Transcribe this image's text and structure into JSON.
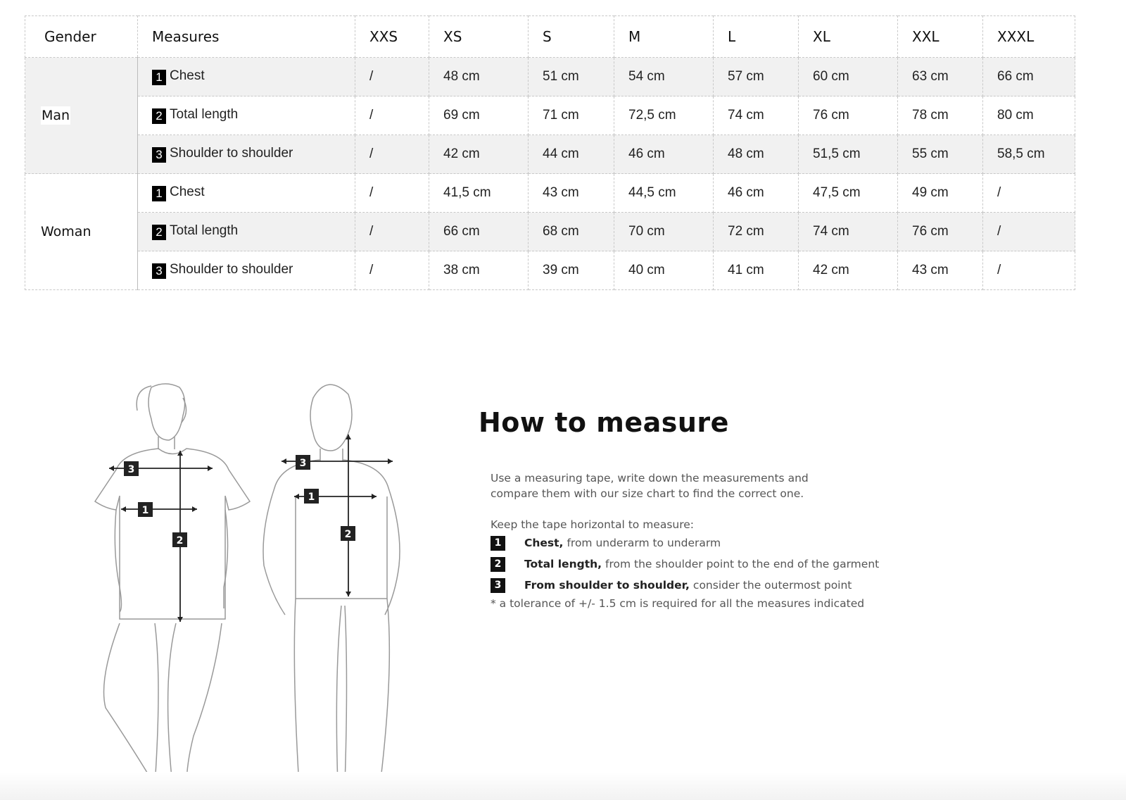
{
  "table": {
    "headers": [
      "Gender",
      "Measures",
      "XXS",
      "XS",
      "S",
      "M",
      "L",
      "XL",
      "XXL",
      "XXXL"
    ],
    "groups": [
      {
        "gender": "Man",
        "rows": [
          {
            "num": "1",
            "measure": "Chest",
            "values": [
              "/",
              "48 cm",
              "51 cm",
              "54 cm",
              "57 cm",
              "60 cm",
              "63 cm",
              "66 cm"
            ]
          },
          {
            "num": "2",
            "measure": "Total length",
            "values": [
              "/",
              "69 cm",
              "71 cm",
              "72,5 cm",
              "74 cm",
              "76 cm",
              "78 cm",
              "80 cm"
            ]
          },
          {
            "num": "3",
            "measure": "Shoulder to shoulder",
            "values": [
              "/",
              "42 cm",
              "44 cm",
              "46 cm",
              "48 cm",
              "51,5 cm",
              "55 cm",
              "58,5 cm"
            ]
          }
        ]
      },
      {
        "gender": "Woman",
        "rows": [
          {
            "num": "1",
            "measure": "Chest",
            "values": [
              "/",
              "41,5 cm",
              "43 cm",
              "44,5 cm",
              "46 cm",
              "47,5 cm",
              "49 cm",
              "/"
            ]
          },
          {
            "num": "2",
            "measure": "Total length",
            "values": [
              "/",
              "66 cm",
              "68 cm",
              "70 cm",
              "72 cm",
              "74 cm",
              "76 cm",
              "/"
            ]
          },
          {
            "num": "3",
            "measure": "Shoulder to shoulder",
            "values": [
              "/",
              "38 cm",
              "39 cm",
              "40 cm",
              "41 cm",
              "42 cm",
              "43 cm",
              "/"
            ]
          }
        ]
      }
    ]
  },
  "howto": {
    "title": "How to measure",
    "intro_line1": "Use a measuring tape, write down the measurements and",
    "intro_line2": "compare them with our size chart to find the correct one.",
    "keep": "Keep the tape horizontal to measure:",
    "steps": [
      {
        "num": "1",
        "bold": "Chest,",
        "text": "from underarm to underarm"
      },
      {
        "num": "2",
        "bold": "Total length,",
        "text": "from the shoulder point to the end of the garment"
      },
      {
        "num": "3",
        "bold": "From shoulder to shoulder,",
        "text": "consider the outermost point"
      }
    ],
    "tolerance": "* a tolerance of +/- 1.5 cm is required for all the measures indicated"
  },
  "illustration": {
    "labels": [
      "1",
      "2",
      "3"
    ]
  }
}
